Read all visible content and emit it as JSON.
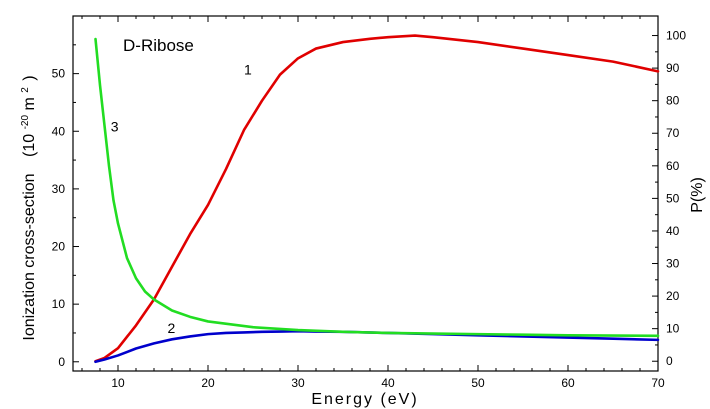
{
  "chart_data": {
    "type": "line",
    "title": "D-Ribose",
    "xlabel": "Energy (eV)",
    "ylabel": "Ionization cross-section",
    "ylabel_unit_base": "(10",
    "ylabel_unit_exp": "-20",
    "ylabel_unit_tail": " m",
    "ylabel_unit_exp2": "2",
    "ylabel_unit_close": ")",
    "y2label": "P(%)",
    "xlim": [
      5,
      70
    ],
    "ylim": [
      -1.6,
      60
    ],
    "y2lim": [
      -3,
      106
    ],
    "xticks": [
      10,
      20,
      30,
      40,
      50,
      60,
      70
    ],
    "yticks": [
      0,
      10,
      20,
      30,
      40,
      50
    ],
    "y2ticks": [
      0,
      10,
      20,
      30,
      40,
      50,
      60,
      70,
      80,
      90,
      100
    ],
    "grid": false,
    "legend": "none",
    "series": [
      {
        "label": "1",
        "color": "#e00000",
        "axis": "right",
        "x": [
          7.5,
          8.5,
          10,
          12,
          14,
          16,
          18,
          20,
          22,
          24,
          26,
          28,
          30,
          32,
          35,
          38,
          40,
          43,
          45,
          50,
          55,
          60,
          65,
          70
        ],
        "y": [
          0,
          1,
          4,
          11,
          19,
          29,
          39,
          48,
          59,
          71,
          80,
          88,
          93,
          96,
          98,
          99,
          99.5,
          100,
          99.5,
          98,
          96,
          94,
          92,
          89
        ]
      },
      {
        "label": "2",
        "color": "#0000cc",
        "axis": "left",
        "x": [
          7.5,
          8.5,
          10,
          12,
          14,
          16,
          18,
          20,
          22,
          24,
          26,
          28,
          30,
          32,
          35,
          40,
          45,
          50,
          55,
          60,
          65,
          70
        ],
        "y": [
          0,
          0.4,
          1.1,
          2.3,
          3.2,
          3.9,
          4.4,
          4.8,
          5.0,
          5.1,
          5.2,
          5.25,
          5.3,
          5.25,
          5.2,
          5.0,
          4.8,
          4.6,
          4.4,
          4.2,
          4.0,
          3.8
        ]
      },
      {
        "label": "3",
        "color": "#22dd22",
        "axis": "left",
        "x": [
          7.5,
          8,
          8.5,
          9,
          9.5,
          10,
          11,
          12,
          13,
          14,
          16,
          18,
          20,
          25,
          30,
          35,
          40,
          45,
          50,
          55,
          60,
          65,
          70
        ],
        "y": [
          56,
          48,
          41,
          34,
          28,
          24,
          18,
          14.5,
          12.2,
          10.8,
          8.9,
          7.8,
          7.0,
          6.0,
          5.5,
          5.2,
          5.0,
          4.9,
          4.8,
          4.7,
          4.6,
          4.55,
          4.5
        ]
      }
    ],
    "curve_labels": [
      {
        "text": "1",
        "x": 24,
        "y_axis": "right",
        "y": 88
      },
      {
        "text": "2",
        "x": 15.5,
        "y_axis": "left",
        "y": 5
      },
      {
        "text": "3",
        "x": 9.2,
        "y_axis": "left",
        "y": 40
      }
    ]
  }
}
